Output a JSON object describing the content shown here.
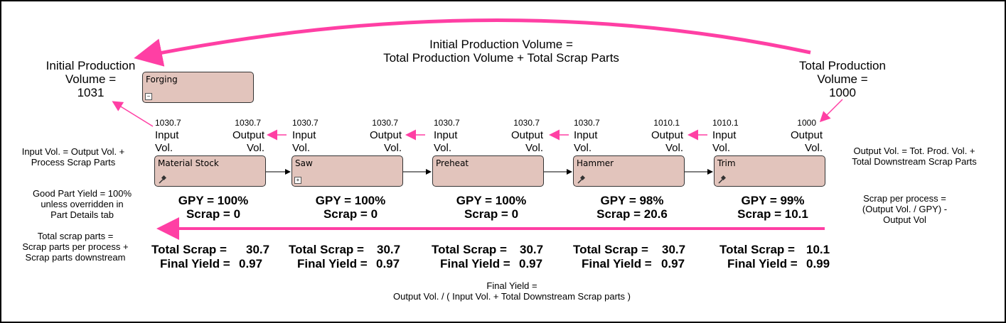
{
  "colors": {
    "arrow_pink": "#ff3fa4",
    "process_fill": "#e2c4bc"
  },
  "top": {
    "initial_volume": {
      "line1": "Initial Production",
      "line2": "Volume =",
      "line3": "1031"
    },
    "formula": {
      "line1": "Initial Production Volume =",
      "line2": "Total Production Volume + Total Scrap Parts"
    },
    "total_volume": {
      "line1": "Total Production",
      "line2": "Volume =",
      "line3": "1000"
    }
  },
  "forging": {
    "label": "Forging",
    "icon": "collapse-minus-icon"
  },
  "left_notes": {
    "input_note": {
      "line1": "Input Vol. = Output Vol. +",
      "line2": "Process Scrap Parts"
    },
    "yield_note": {
      "line1": "Good Part Yield = 100%",
      "line2": "unless overridden in",
      "line3": "Part Details tab"
    },
    "scrap_note": {
      "line1": "Total scrap parts =",
      "line2": "Scrap parts per process +",
      "line3": "Scrap parts downstream"
    }
  },
  "right_notes": {
    "output_note": {
      "line1": "Output Vol. = Tot. Prod. Vol. +",
      "line2": "Total Downstream Scrap Parts"
    },
    "scrap_note": {
      "line1": "Scrap per process =",
      "line2": "(Output Vol. / GPY) -",
      "line3": "Output Vol"
    }
  },
  "vol_label": {
    "input": "Input",
    "output": "Output",
    "vol": "Vol."
  },
  "processes": [
    {
      "name": "Material Stock",
      "icon": "hammer-icon",
      "input": "1030.7",
      "output": "1030.7",
      "gpy": "GPY = 100%",
      "scrap": "Scrap = 0",
      "total_scrap_label": "Total Scrap =",
      "total_scrap": "30.7",
      "final_yield_label": "Final Yield =",
      "final_yield": "0.97"
    },
    {
      "name": "Saw",
      "icon": "expand-plus-icon",
      "input": "1030.7",
      "output": "1030.7",
      "gpy": "GPY = 100%",
      "scrap": "Scrap = 0",
      "total_scrap_label": "Total Scrap =",
      "total_scrap": "30.7",
      "final_yield_label": "Final Yield =",
      "final_yield": "0.97"
    },
    {
      "name": "Preheat",
      "icon": "",
      "input": "1030.7",
      "output": "1030.7",
      "gpy": "GPY = 100%",
      "scrap": "Scrap = 0",
      "total_scrap_label": "Total Scrap =",
      "total_scrap": "30.7",
      "final_yield_label": "Final Yield =",
      "final_yield": "0.97"
    },
    {
      "name": "Hammer",
      "icon": "hammer-icon",
      "input": "1030.7",
      "output": "1010.1",
      "gpy": "GPY = 98%",
      "scrap": "Scrap = 20.6",
      "total_scrap_label": "Total Scrap =",
      "total_scrap": "30.7",
      "final_yield_label": "Final Yield =",
      "final_yield": "0.97"
    },
    {
      "name": "Trim",
      "icon": "hammer-icon",
      "input": "1010.1",
      "output": "1000",
      "gpy": "GPY = 99%",
      "scrap": "Scrap = 10.1",
      "total_scrap_label": "Total Scrap =",
      "total_scrap": "10.1",
      "final_yield_label": "Final Yield =",
      "final_yield": "0.99"
    }
  ],
  "bottom": {
    "line1": "Final Yield =",
    "line2": "Output Vol. / ( Input Vol. + Total Downstream Scrap parts )"
  }
}
